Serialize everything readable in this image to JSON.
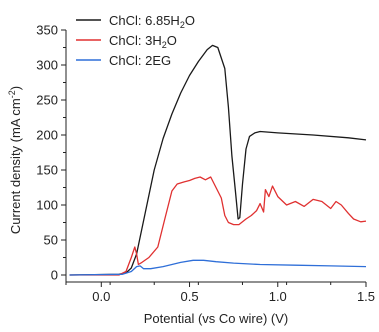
{
  "chart_data": {
    "type": "line",
    "xlabel": "Potential (vs Co wire) (V)",
    "ylabel": {
      "main": "Current density (mA cm",
      "sup": "-2",
      "tail": ")"
    },
    "xlim": [
      -0.2,
      1.5
    ],
    "ylim": [
      -10,
      350
    ],
    "xticks": [
      0.0,
      0.5,
      1.0,
      1.5
    ],
    "xtick_labels": [
      "0.0",
      "0.5",
      "1.0",
      "1.5"
    ],
    "yticks": [
      0,
      50,
      100,
      150,
      200,
      250,
      300,
      350
    ],
    "ytick_labels": [
      "0",
      "50",
      "100",
      "150",
      "200",
      "250",
      "300",
      "350"
    ],
    "grid": false,
    "legend_position": "top-left",
    "series": [
      {
        "name": "ChCl: 6.85H2O",
        "legend": {
          "pre": "ChCl: 6.85H",
          "sub": "2",
          "post": "O"
        },
        "color": "#1a1a1a",
        "points": [
          [
            -0.18,
            0
          ],
          [
            0.1,
            1
          ],
          [
            0.14,
            3
          ],
          [
            0.17,
            10
          ],
          [
            0.2,
            30
          ],
          [
            0.25,
            90
          ],
          [
            0.3,
            150
          ],
          [
            0.35,
            195
          ],
          [
            0.4,
            230
          ],
          [
            0.45,
            260
          ],
          [
            0.5,
            285
          ],
          [
            0.55,
            305
          ],
          [
            0.6,
            322
          ],
          [
            0.63,
            328
          ],
          [
            0.66,
            325
          ],
          [
            0.7,
            295
          ],
          [
            0.72,
            240
          ],
          [
            0.74,
            170
          ],
          [
            0.76,
            120
          ],
          [
            0.775,
            80
          ],
          [
            0.785,
            82
          ],
          [
            0.8,
            130
          ],
          [
            0.82,
            180
          ],
          [
            0.84,
            198
          ],
          [
            0.87,
            203
          ],
          [
            0.9,
            205
          ],
          [
            1.0,
            203
          ],
          [
            1.2,
            200
          ],
          [
            1.4,
            196
          ],
          [
            1.5,
            193
          ]
        ]
      },
      {
        "name": "ChCl: 3H2O",
        "legend": {
          "pre": "ChCl: 3H",
          "sub": "2",
          "post": "O"
        },
        "color": "#e03131",
        "points": [
          [
            -0.18,
            0
          ],
          [
            0.1,
            0
          ],
          [
            0.14,
            5
          ],
          [
            0.17,
            25
          ],
          [
            0.19,
            40
          ],
          [
            0.2,
            30
          ],
          [
            0.21,
            15
          ],
          [
            0.23,
            18
          ],
          [
            0.27,
            25
          ],
          [
            0.32,
            40
          ],
          [
            0.36,
            80
          ],
          [
            0.4,
            120
          ],
          [
            0.43,
            130
          ],
          [
            0.47,
            133
          ],
          [
            0.5,
            135
          ],
          [
            0.53,
            138
          ],
          [
            0.56,
            140
          ],
          [
            0.59,
            136
          ],
          [
            0.62,
            140
          ],
          [
            0.65,
            125
          ],
          [
            0.68,
            110
          ],
          [
            0.7,
            85
          ],
          [
            0.72,
            75
          ],
          [
            0.75,
            72
          ],
          [
            0.78,
            72
          ],
          [
            0.82,
            80
          ],
          [
            0.85,
            85
          ],
          [
            0.88,
            92
          ],
          [
            0.9,
            102
          ],
          [
            0.92,
            90
          ],
          [
            0.93,
            122
          ],
          [
            0.95,
            112
          ],
          [
            0.97,
            127
          ],
          [
            1.0,
            112
          ],
          [
            1.05,
            100
          ],
          [
            1.1,
            105
          ],
          [
            1.15,
            98
          ],
          [
            1.2,
            108
          ],
          [
            1.25,
            105
          ],
          [
            1.3,
            95
          ],
          [
            1.33,
            105
          ],
          [
            1.36,
            100
          ],
          [
            1.4,
            88
          ],
          [
            1.43,
            80
          ],
          [
            1.47,
            76
          ],
          [
            1.5,
            77
          ]
        ]
      },
      {
        "name": "ChCl: 2EG",
        "legend": {
          "pre": "ChCl: 2EG",
          "sub": "",
          "post": ""
        },
        "color": "#2f6fd8",
        "points": [
          [
            -0.18,
            0
          ],
          [
            0.12,
            1
          ],
          [
            0.17,
            5
          ],
          [
            0.2,
            12
          ],
          [
            0.22,
            13
          ],
          [
            0.24,
            9
          ],
          [
            0.28,
            9
          ],
          [
            0.35,
            12
          ],
          [
            0.45,
            18
          ],
          [
            0.52,
            21
          ],
          [
            0.58,
            21
          ],
          [
            0.65,
            19
          ],
          [
            0.75,
            17
          ],
          [
            0.9,
            15
          ],
          [
            1.1,
            14
          ],
          [
            1.3,
            13
          ],
          [
            1.5,
            12
          ]
        ]
      }
    ]
  }
}
